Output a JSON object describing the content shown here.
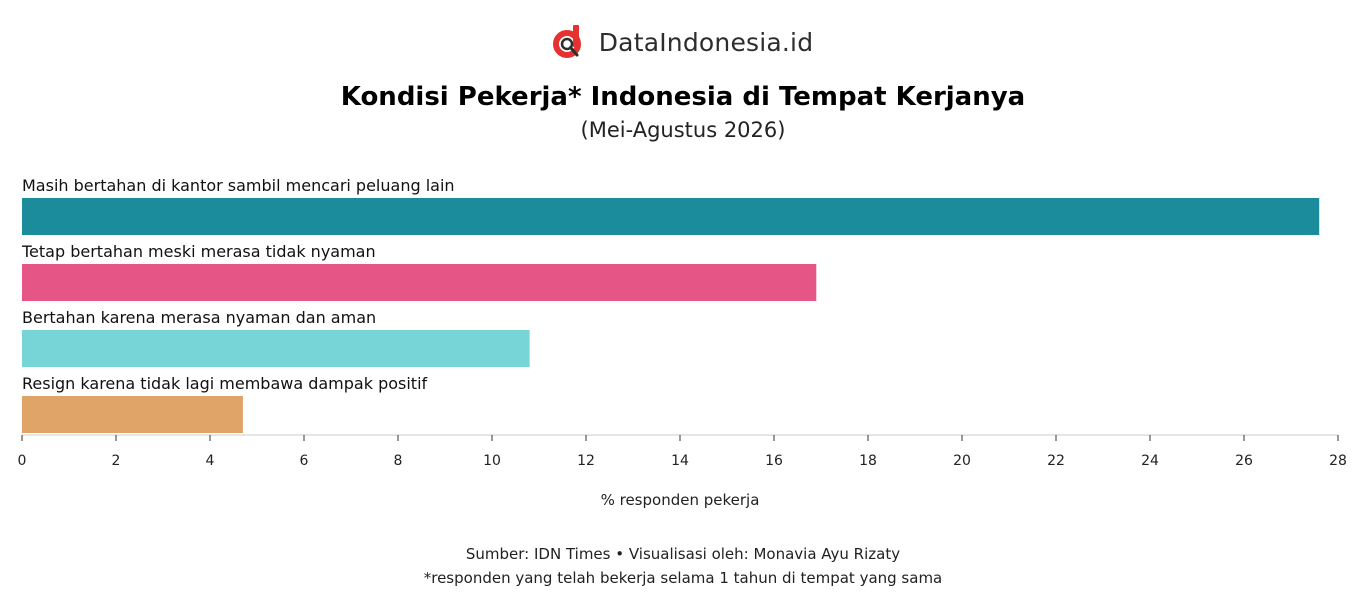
{
  "brand": {
    "name": "DataIndonesia.id",
    "logo_icon": "magnifier-d-logo-icon",
    "logo_color": "#e5312f"
  },
  "footer": {
    "source": "Sumber: IDN Times • Visualisasi oleh: Monavia Ayu Rizaty",
    "note": "*responden yang telah bekerja selama 1 tahun di tempat yang sama"
  },
  "chart_data": {
    "type": "bar",
    "orientation": "horizontal",
    "title": "Kondisi Pekerja* Indonesia di Tempat Kerjanya",
    "subtitle": "(Mei-Agustus 2026)",
    "xlabel": "% responden pekerja",
    "ylabel": "",
    "xlim": [
      0,
      28
    ],
    "xticks": [
      0,
      2,
      4,
      6,
      8,
      10,
      12,
      14,
      16,
      18,
      20,
      22,
      24,
      26,
      28
    ],
    "grid": false,
    "categories": [
      "Masih bertahan di kantor sambil mencari peluang lain",
      "Tetap bertahan meski merasa tidak nyaman",
      "Bertahan karena merasa nyaman dan aman",
      "Resign karena tidak lagi membawa dampak positif"
    ],
    "values": [
      27.6,
      16.9,
      10.8,
      4.7
    ],
    "colors": [
      "#1a8c9c",
      "#e55686",
      "#78d5d7",
      "#e0a468"
    ]
  }
}
